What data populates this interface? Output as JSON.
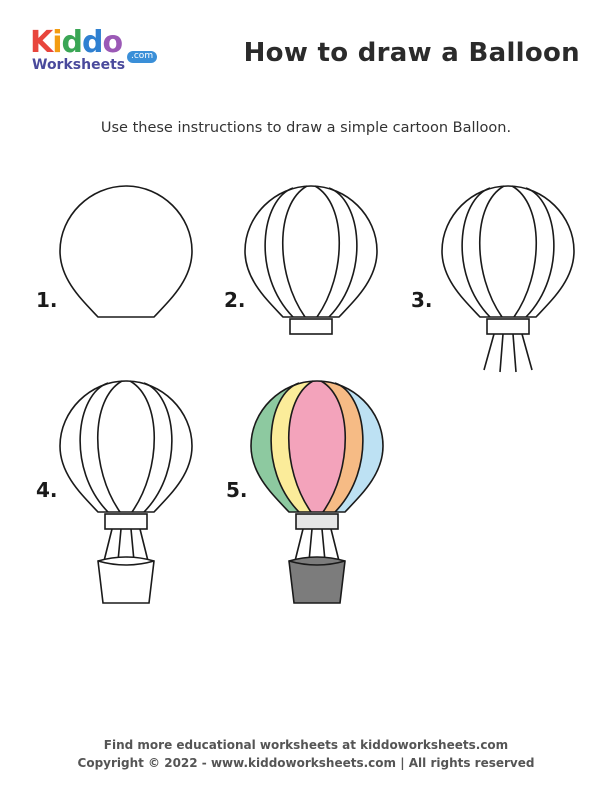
{
  "logo": {
    "brand_letters": [
      "K",
      "i",
      "d",
      "d",
      "o"
    ],
    "sub": "Worksheets",
    "com": ".com"
  },
  "header": {
    "title": "How to draw a Balloon"
  },
  "subtitle": "Use these instructions to draw a simple cartoon Balloon.",
  "steps": [
    {
      "label": "1."
    },
    {
      "label": "2."
    },
    {
      "label": "3."
    },
    {
      "label": "4."
    },
    {
      "label": "5."
    }
  ],
  "colors": {
    "stroke": "#1a1a1a",
    "green": "#8dc9a0",
    "yellow": "#fbec9a",
    "pink": "#f3a3bb",
    "orange": "#f6bb85",
    "blue": "#bde1f3",
    "band": "#e6e6e6",
    "basket": "#7c7c7c",
    "logo": [
      "#e8453c",
      "#f39c12",
      "#3aa655",
      "#2f80d1",
      "#9b59b6"
    ]
  },
  "footer": {
    "line1": "Find more educational worksheets at kiddoworksheets.com",
    "line2": "Copyright © 2022 - www.kiddoworksheets.com  |  All rights reserved"
  }
}
